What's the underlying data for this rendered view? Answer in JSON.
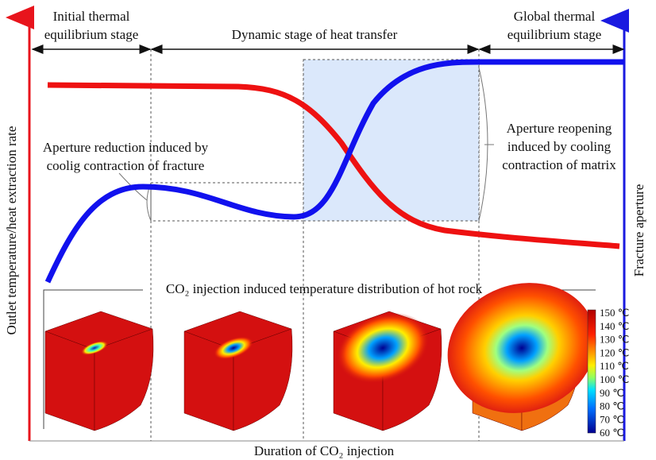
{
  "stages": [
    {
      "lines": [
        "Initial thermal",
        "equilibrium stage"
      ]
    },
    {
      "lines": [
        "Dynamic stage of heat transfer"
      ]
    },
    {
      "lines": [
        "Global thermal",
        "equilibrium stage"
      ]
    }
  ],
  "annotations": [
    {
      "lines": [
        "Aperture reduction induced by",
        "coolig contraction of fracture"
      ]
    },
    {
      "lines": [
        "Aperture reopening",
        "induced by cooling",
        "contraction of matrix"
      ]
    }
  ],
  "left_axis_label": "Outlet temperature/heat extraction rate",
  "right_axis_label": "Fracture aperture",
  "x_axis_label": "Duration of CO₂ injection",
  "panel_title": "CO₂ injection induced temperature distribution of hot rock",
  "colorbar_labels": [
    "150 ℃",
    "140 ℃",
    "130 ℃",
    "120 ℃",
    "110 ℃",
    "100 ℃",
    "90 ℃",
    "80 ℃",
    "70 ℃",
    "60 ℃"
  ]
}
